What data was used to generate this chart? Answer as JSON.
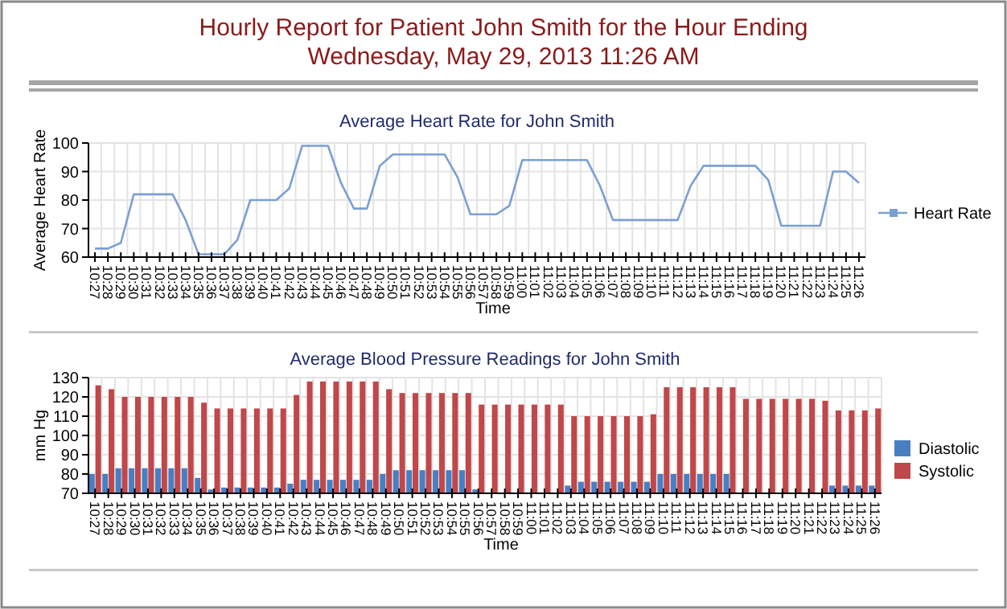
{
  "chart_data": [
    {
      "type": "other",
      "title": "Hourly Report for Patient John Smith for the Hour Ending",
      "subtitle": "Wednesday, May 29, 2013 11:26 AM"
    },
    {
      "type": "line",
      "title": "Average Heart Rate for John Smith",
      "xlabel": "Time",
      "ylabel": "Average Heart Rate",
      "categories": [
        "10:27",
        "10:28",
        "10:29",
        "10:30",
        "10:31",
        "10:32",
        "10:33",
        "10:34",
        "10:35",
        "10:36",
        "10:37",
        "10:38",
        "10:39",
        "10:40",
        "10:41",
        "10:42",
        "10:43",
        "10:44",
        "10:45",
        "10:46",
        "10:47",
        "10:48",
        "10:49",
        "10:50",
        "10:51",
        "10:52",
        "10:53",
        "10:54",
        "10:55",
        "10:56",
        "10:57",
        "10:58",
        "10:59",
        "11:00",
        "11:01",
        "11:02",
        "11:03",
        "11:04",
        "11:05",
        "11:06",
        "11:07",
        "11:08",
        "11:09",
        "11:10",
        "11:11",
        "11:12",
        "11:13",
        "11:14",
        "11:15",
        "11:16",
        "11:17",
        "11:18",
        "11:19",
        "11:20",
        "11:21",
        "11:22",
        "11:23",
        "11:24",
        "11:25",
        "11:26"
      ],
      "series": [
        {
          "name": "Heart Rate",
          "color": "#7b9fd4",
          "values": [
            63,
            63,
            65,
            82,
            82,
            82,
            82,
            73,
            61,
            61,
            61,
            66,
            80,
            80,
            80,
            84,
            99,
            99,
            99,
            86,
            77,
            77,
            92,
            96,
            96,
            96,
            96,
            96,
            88,
            75,
            75,
            75,
            78,
            94,
            94,
            94,
            94,
            94,
            94,
            85,
            73,
            73,
            73,
            73,
            73,
            73,
            85,
            92,
            92,
            92,
            92,
            92,
            87,
            71,
            71,
            71,
            71,
            90,
            90,
            86
          ]
        }
      ],
      "ylim": [
        60,
        100
      ],
      "yticks": [
        60,
        70,
        80,
        90,
        100
      ],
      "grid": true,
      "legend": "right"
    },
    {
      "type": "bar",
      "title": "Average Blood Pressure Readings for John Smith",
      "xlabel": "Time",
      "ylabel": "mm Hg",
      "categories": [
        "10:27",
        "10:28",
        "10:29",
        "10:30",
        "10:31",
        "10:32",
        "10:33",
        "10:34",
        "10:35",
        "10:36",
        "10:37",
        "10:38",
        "10:39",
        "10:40",
        "10:41",
        "10:42",
        "10:43",
        "10:44",
        "10:45",
        "10:46",
        "10:47",
        "10:48",
        "10:49",
        "10:50",
        "10:51",
        "10:52",
        "10:53",
        "10:54",
        "10:55",
        "10:56",
        "10:57",
        "10:58",
        "10:59",
        "11:00",
        "11:01",
        "11:02",
        "11:03",
        "11:04",
        "11:05",
        "11:06",
        "11:07",
        "11:08",
        "11:09",
        "11:10",
        "11:11",
        "11:12",
        "11:13",
        "11:14",
        "11:15",
        "11:16",
        "11:17",
        "11:18",
        "11:19",
        "11:20",
        "11:21",
        "11:22",
        "11:23",
        "11:24",
        "11:25",
        "11:26"
      ],
      "series": [
        {
          "name": "Diastolic",
          "color": "#4a7ec2",
          "values": [
            80,
            80,
            83,
            83,
            83,
            83,
            83,
            83,
            78,
            72,
            73,
            73,
            73,
            73,
            73,
            75,
            77,
            77,
            77,
            77,
            77,
            77,
            80,
            82,
            82,
            82,
            82,
            82,
            82,
            72,
            null,
            null,
            null,
            null,
            null,
            null,
            74,
            76,
            76,
            76,
            76,
            76,
            76,
            80,
            80,
            80,
            80,
            80,
            80,
            null,
            null,
            null,
            null,
            null,
            null,
            null,
            74,
            74,
            74,
            74
          ]
        },
        {
          "name": "Systolic",
          "color": "#c0474a",
          "values": [
            126,
            124,
            120,
            120,
            120,
            120,
            120,
            120,
            117,
            114,
            114,
            114,
            114,
            114,
            114,
            121,
            128,
            128,
            128,
            128,
            128,
            128,
            124,
            122,
            122,
            122,
            122,
            122,
            122,
            116,
            116,
            116,
            116,
            116,
            116,
            116,
            110,
            110,
            110,
            110,
            110,
            110,
            111,
            125,
            125,
            125,
            125,
            125,
            125,
            119,
            119,
            119,
            119,
            119,
            119,
            118,
            113,
            113,
            113,
            114
          ]
        }
      ],
      "ylim": [
        70,
        130
      ],
      "yticks": [
        70,
        80,
        90,
        100,
        110,
        120,
        130
      ],
      "grid": true,
      "legend": "right"
    }
  ]
}
